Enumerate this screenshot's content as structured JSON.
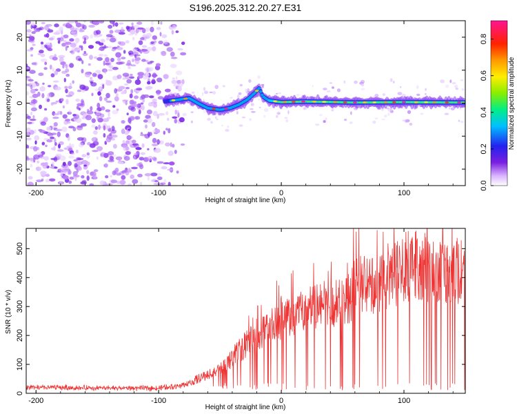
{
  "title": "S196.2025.312.20.27.E31",
  "chart_data": [
    {
      "type": "heatmap",
      "xlabel": "Height of straight line (km)",
      "ylabel": "Frequency (Hz)",
      "xlim": [
        -208,
        150
      ],
      "ylim": [
        -25,
        25
      ],
      "x_ticks": [
        -200,
        -100,
        0,
        100
      ],
      "y_ticks": [
        -20,
        -10,
        0,
        10,
        20
      ],
      "colorbar": {
        "label": "Normalized spectral amplitude",
        "range": [
          0,
          0.9
        ],
        "ticks": [
          0.0,
          0.2,
          0.4,
          0.6,
          0.8
        ]
      },
      "ridge": {
        "x": [
          -95,
          -85,
          -75,
          -68,
          -60,
          -50,
          -42,
          -35,
          -28,
          -22,
          -18,
          -15,
          -10,
          0,
          20,
          60,
          100,
          150
        ],
        "y": [
          0.5,
          1.0,
          1.5,
          0.0,
          -1.5,
          -2.0,
          -1.5,
          -0.5,
          1.0,
          3.0,
          4.5,
          2.0,
          0.8,
          0.3,
          0.5,
          0.2,
          0.3,
          0.2
        ]
      },
      "noise_region_x": [
        -208,
        -100
      ]
    },
    {
      "type": "line",
      "xlabel": "Height of straight line (km)",
      "ylabel": "SNR (10 * v/v)",
      "xlim": [
        -208,
        150
      ],
      "ylim": [
        0,
        570
      ],
      "x_ticks": [
        -200,
        -100,
        0,
        100
      ],
      "y_ticks": [
        0,
        100,
        200,
        300,
        400,
        500
      ],
      "color": "#ee3333",
      "series": [
        {
          "name": "SNR",
          "x": [
            -208,
            -180,
            -150,
            -120,
            -100,
            -85,
            -75,
            -65,
            -55,
            -45,
            -35,
            -25,
            -15,
            -5,
            0,
            10,
            20,
            30,
            40,
            50,
            55,
            60,
            70,
            80,
            90,
            95,
            100,
            110,
            120,
            130,
            140,
            150
          ],
          "values": [
            20,
            20,
            18,
            18,
            18,
            25,
            35,
            55,
            75,
            100,
            145,
            185,
            215,
            245,
            255,
            275,
            290,
            300,
            305,
            320,
            330,
            370,
            375,
            380,
            395,
            420,
            440,
            445,
            430,
            430,
            420,
            420
          ]
        }
      ]
    }
  ]
}
